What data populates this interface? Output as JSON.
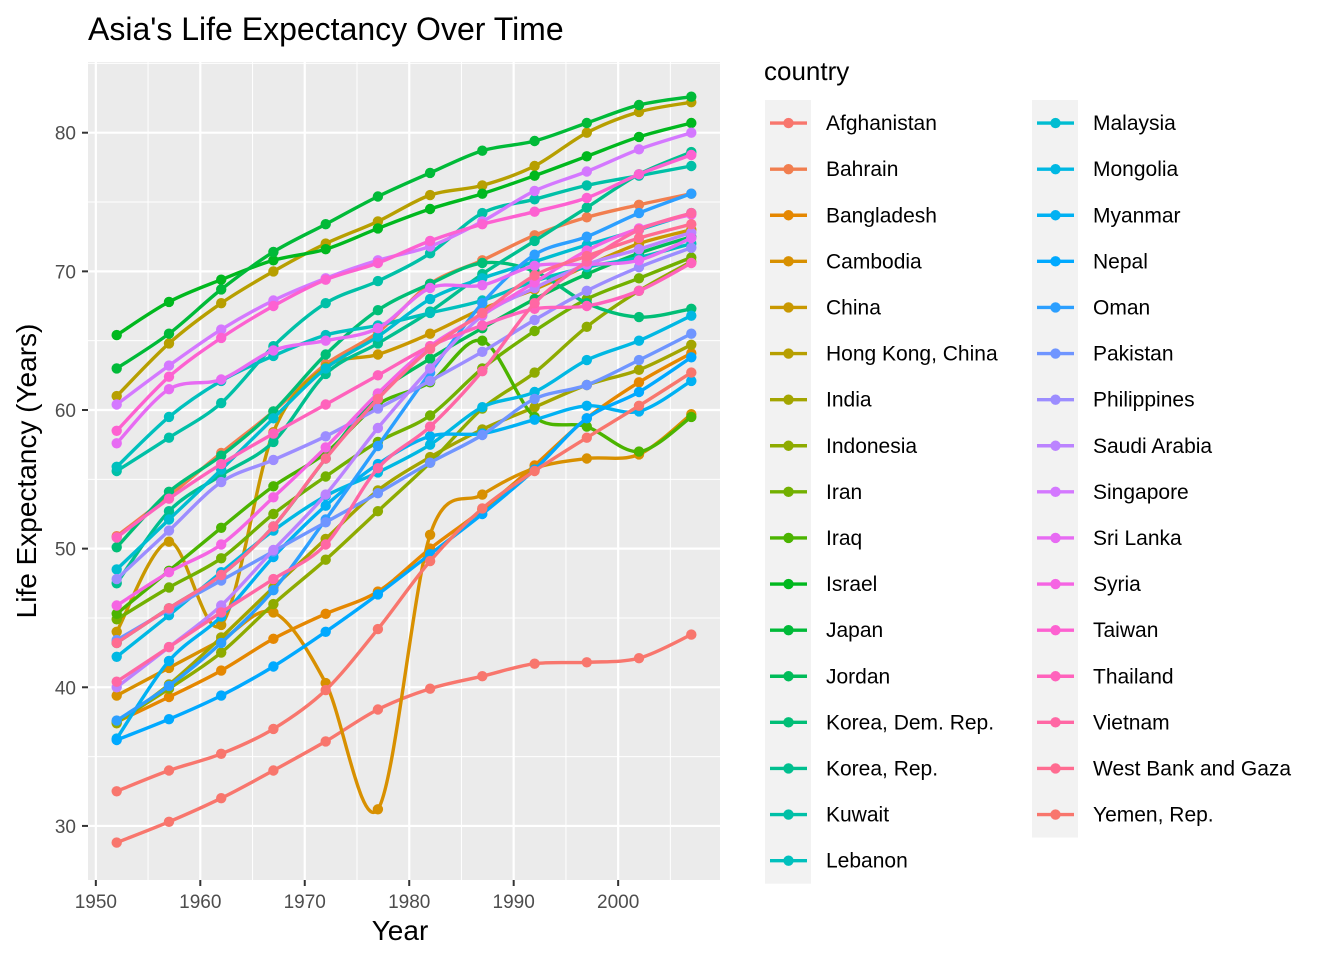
{
  "chart_data": {
    "type": "line",
    "title": "Asia's Life Expectancy Over Time",
    "xlabel": "Year",
    "ylabel": "Life Expectancy (Years)",
    "xlim": [
      1949.25,
      2009.75
    ],
    "ylim": [
      26.1,
      85.1
    ],
    "x_ticks": [
      1950,
      1960,
      1970,
      1980,
      1990,
      2000
    ],
    "y_ticks": [
      30,
      40,
      50,
      60,
      70,
      80
    ],
    "grid": true,
    "legend_title": "country",
    "legend_position": "right",
    "x": [
      1952,
      1957,
      1962,
      1967,
      1972,
      1977,
      1982,
      1987,
      1992,
      1997,
      2002,
      2007
    ],
    "series": [
      {
        "name": "Afghanistan",
        "color": "#F8766D",
        "values": [
          28.8,
          30.3,
          32.0,
          34.0,
          36.1,
          38.4,
          39.9,
          40.8,
          41.7,
          41.8,
          42.1,
          43.8
        ]
      },
      {
        "name": "Bahrain",
        "color": "#F17E4F",
        "values": [
          50.9,
          53.8,
          56.9,
          59.9,
          63.3,
          65.6,
          69.1,
          70.8,
          72.6,
          73.9,
          74.8,
          75.6
        ]
      },
      {
        "name": "Bangladesh",
        "color": "#E58700",
        "values": [
          37.5,
          39.3,
          41.2,
          43.5,
          45.3,
          46.9,
          50.0,
          52.8,
          56.0,
          59.4,
          62.0,
          64.1
        ]
      },
      {
        "name": "Cambodia",
        "color": "#D89000",
        "values": [
          39.4,
          41.4,
          43.4,
          45.4,
          40.3,
          31.2,
          51.0,
          53.9,
          55.8,
          56.5,
          56.8,
          59.7
        ]
      },
      {
        "name": "China",
        "color": "#C99800",
        "values": [
          44.0,
          50.5,
          44.5,
          58.4,
          63.1,
          64.0,
          65.5,
          67.3,
          68.7,
          70.4,
          72.0,
          73.0
        ]
      },
      {
        "name": "Hong Kong, China",
        "color": "#B79F00",
        "values": [
          61.0,
          64.8,
          67.7,
          70.0,
          72.0,
          73.6,
          75.5,
          76.2,
          77.6,
          80.0,
          81.5,
          82.2
        ]
      },
      {
        "name": "India",
        "color": "#A3A500",
        "values": [
          37.4,
          40.2,
          43.6,
          47.2,
          50.7,
          54.2,
          56.6,
          58.6,
          60.2,
          61.8,
          62.9,
          64.7
        ]
      },
      {
        "name": "Indonesia",
        "color": "#8EAB00",
        "values": [
          37.5,
          39.9,
          42.5,
          46.0,
          49.2,
          52.7,
          56.2,
          60.1,
          62.7,
          66.0,
          68.6,
          70.7
        ]
      },
      {
        "name": "Iran",
        "color": "#72B000",
        "values": [
          44.9,
          47.2,
          49.3,
          52.5,
          55.2,
          57.7,
          59.6,
          63.0,
          65.7,
          68.0,
          69.5,
          71.0
        ]
      },
      {
        "name": "Iraq",
        "color": "#4BB400",
        "values": [
          45.3,
          48.4,
          51.5,
          54.5,
          56.9,
          60.4,
          62.0,
          65.0,
          59.5,
          58.8,
          57.0,
          59.5
        ]
      },
      {
        "name": "Israel",
        "color": "#00B81E",
        "values": [
          65.4,
          67.8,
          69.4,
          70.8,
          71.6,
          73.1,
          74.5,
          75.6,
          76.9,
          78.3,
          79.7,
          80.7
        ]
      },
      {
        "name": "Japan",
        "color": "#00BA38",
        "values": [
          63.0,
          65.5,
          68.7,
          71.4,
          73.4,
          75.4,
          77.1,
          78.7,
          79.4,
          80.7,
          82.0,
          82.6
        ]
      },
      {
        "name": "Jordan",
        "color": "#00BC59",
        "values": [
          43.2,
          45.7,
          48.1,
          51.6,
          56.5,
          61.1,
          63.7,
          65.9,
          68.0,
          69.8,
          71.3,
          72.5
        ]
      },
      {
        "name": "Korea, Dem. Rep.",
        "color": "#00BE76",
        "values": [
          50.1,
          54.1,
          56.7,
          59.9,
          64.0,
          67.2,
          69.1,
          70.6,
          70.0,
          67.7,
          66.7,
          67.3
        ]
      },
      {
        "name": "Korea, Rep.",
        "color": "#00BF8F",
        "values": [
          47.5,
          52.7,
          55.3,
          57.7,
          62.6,
          64.8,
          67.1,
          69.8,
          72.2,
          74.6,
          77.0,
          78.6
        ]
      },
      {
        "name": "Kuwait",
        "color": "#00C0A7",
        "values": [
          55.6,
          58.0,
          60.5,
          64.6,
          67.7,
          69.3,
          71.3,
          74.2,
          75.2,
          76.2,
          76.9,
          77.6
        ]
      },
      {
        "name": "Lebanon",
        "color": "#00C0BD",
        "values": [
          55.9,
          59.5,
          62.1,
          63.9,
          65.4,
          66.1,
          67.0,
          67.9,
          69.3,
          70.3,
          71.0,
          72.0
        ]
      },
      {
        "name": "Malaysia",
        "color": "#00BDD1",
        "values": [
          48.5,
          52.1,
          55.7,
          59.4,
          63.0,
          65.3,
          68.0,
          69.5,
          70.7,
          71.9,
          73.0,
          74.2
        ]
      },
      {
        "name": "Mongolia",
        "color": "#00B8E3",
        "values": [
          42.2,
          45.2,
          48.3,
          51.3,
          53.8,
          55.5,
          57.5,
          60.2,
          61.3,
          63.6,
          65.0,
          66.8
        ]
      },
      {
        "name": "Myanmar",
        "color": "#00B1F3",
        "values": [
          36.3,
          41.9,
          45.1,
          49.4,
          53.1,
          56.1,
          58.1,
          58.3,
          59.3,
          60.3,
          59.9,
          62.1
        ]
      },
      {
        "name": "Nepal",
        "color": "#00A9FF",
        "values": [
          36.2,
          37.7,
          39.4,
          41.5,
          44.0,
          46.7,
          49.6,
          52.5,
          55.7,
          59.4,
          61.3,
          63.8
        ]
      },
      {
        "name": "Oman",
        "color": "#2C9FFF",
        "values": [
          37.6,
          40.1,
          43.2,
          47.0,
          52.1,
          57.4,
          62.7,
          67.7,
          71.2,
          72.5,
          74.2,
          75.6
        ]
      },
      {
        "name": "Pakistan",
        "color": "#6F95FF",
        "values": [
          43.4,
          45.6,
          47.7,
          49.8,
          51.9,
          54.0,
          56.2,
          58.2,
          60.8,
          61.8,
          63.6,
          65.5
        ]
      },
      {
        "name": "Philippines",
        "color": "#9C8DFF",
        "values": [
          47.8,
          51.3,
          54.8,
          56.4,
          58.1,
          60.1,
          62.1,
          64.2,
          66.5,
          68.6,
          70.3,
          71.7
        ]
      },
      {
        "name": "Saudi Arabia",
        "color": "#BB83FF",
        "values": [
          40.0,
          42.9,
          45.9,
          49.9,
          53.9,
          58.7,
          63.0,
          66.8,
          68.8,
          70.5,
          71.6,
          72.8
        ]
      },
      {
        "name": "Singapore",
        "color": "#D478FF",
        "values": [
          60.4,
          63.2,
          65.8,
          67.9,
          69.5,
          70.8,
          71.8,
          73.6,
          75.8,
          77.2,
          78.8,
          80.0
        ]
      },
      {
        "name": "Sri Lanka",
        "color": "#E76BF3",
        "values": [
          57.6,
          61.5,
          62.2,
          64.3,
          65.0,
          65.9,
          68.8,
          69.0,
          70.4,
          70.5,
          70.8,
          72.4
        ]
      },
      {
        "name": "Syria",
        "color": "#F564E3",
        "values": [
          45.9,
          48.3,
          50.3,
          53.7,
          57.3,
          61.2,
          64.6,
          66.9,
          69.2,
          71.5,
          73.1,
          74.1
        ]
      },
      {
        "name": "Taiwan",
        "color": "#FD61D1",
        "values": [
          58.5,
          62.4,
          65.2,
          67.5,
          69.4,
          70.6,
          72.2,
          73.4,
          74.3,
          75.3,
          77.0,
          78.4
        ]
      },
      {
        "name": "Thailand",
        "color": "#FF62BC",
        "values": [
          50.8,
          53.6,
          56.1,
          58.3,
          60.4,
          62.5,
          64.6,
          66.1,
          67.3,
          67.5,
          68.6,
          70.6
        ]
      },
      {
        "name": "Vietnam",
        "color": "#FF67A4",
        "values": [
          40.4,
          42.9,
          45.4,
          47.8,
          50.3,
          55.8,
          58.8,
          62.8,
          67.7,
          70.7,
          73.0,
          74.2
        ]
      },
      {
        "name": "West Bank and Gaza",
        "color": "#FF6C91",
        "values": [
          43.2,
          45.7,
          48.1,
          51.6,
          56.5,
          60.8,
          64.4,
          67.0,
          69.7,
          71.1,
          72.4,
          73.4
        ]
      },
      {
        "name": "Yemen, Rep.",
        "color": "#F8766D",
        "values": [
          32.5,
          34.0,
          35.2,
          37.0,
          39.8,
          44.2,
          49.1,
          52.9,
          55.6,
          58.0,
          60.3,
          62.7
        ]
      }
    ]
  }
}
